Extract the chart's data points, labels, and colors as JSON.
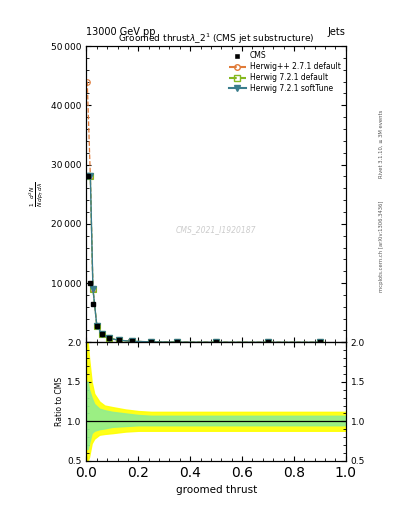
{
  "top_left_label": "13000 GeV pp",
  "top_right_label": "Jets",
  "watermark": "CMS_2021_I1920187",
  "right_label_top": "Rivet 3.1.10, ≥ 3M events",
  "right_label_bot": "mcplots.cern.ch [arXiv:1306.3436]",
  "xlabel": "groomed thrust",
  "ylabel_main": "$\\frac{1}{N}\\frac{d^2N}{dp_T\\,d\\lambda}$",
  "ylabel_ratio": "Ratio to CMS",
  "title": "Groomed thrust $\\lambda\\_2^1$ (CMS jet substructure)",
  "cms_x": [
    0.005,
    0.015,
    0.025,
    0.04,
    0.06,
    0.085,
    0.125,
    0.175,
    0.25,
    0.35,
    0.5,
    0.7,
    0.9
  ],
  "cms_y": [
    28000,
    10000,
    6500,
    2800,
    1400,
    700,
    350,
    180,
    70,
    25,
    8,
    4,
    1.5
  ],
  "herwig_pp_x": [
    0.003,
    0.015,
    0.025,
    0.04,
    0.06,
    0.085,
    0.125,
    0.175,
    0.25,
    0.35,
    0.5,
    0.7,
    0.9
  ],
  "herwig_pp_y": [
    44000,
    28000,
    9000,
    2800,
    1400,
    700,
    350,
    180,
    70,
    25,
    8,
    4,
    1.5
  ],
  "herwig721_x": [
    0.003,
    0.015,
    0.025,
    0.04,
    0.06,
    0.085,
    0.125,
    0.175,
    0.25,
    0.35,
    0.5,
    0.7,
    0.9
  ],
  "herwig721_y": [
    28000,
    28000,
    9000,
    2800,
    1400,
    700,
    350,
    180,
    70,
    25,
    8,
    4,
    1.5
  ],
  "herwig721s_x": [
    0.003,
    0.015,
    0.025,
    0.04,
    0.06,
    0.085,
    0.125,
    0.175,
    0.25,
    0.35,
    0.5,
    0.7,
    0.9
  ],
  "herwig721s_y": [
    28000,
    28000,
    9000,
    2800,
    1400,
    700,
    350,
    180,
    70,
    25,
    8,
    4,
    1.5
  ],
  "color_cms": "#000000",
  "color_herwig_pp": "#e07b39",
  "color_herwig721": "#85b820",
  "color_herwig721s": "#3a7d8c",
  "ylim_main": [
    0,
    50000
  ],
  "yticks_main": [
    0,
    10000,
    20000,
    30000,
    40000,
    50000
  ],
  "ylim_ratio": [
    0.5,
    2.0
  ],
  "yticks_ratio": [
    0.5,
    1.0,
    1.5,
    2.0
  ],
  "xlim": [
    0.0,
    1.0
  ],
  "band_yellow_x": [
    0.0,
    0.005,
    0.01,
    0.02,
    0.03,
    0.05,
    0.07,
    0.1,
    0.15,
    0.2,
    0.25,
    0.3,
    0.5,
    0.7,
    0.9,
    1.0
  ],
  "band_yellow_lo": [
    0.5,
    0.5,
    0.55,
    0.72,
    0.78,
    0.83,
    0.84,
    0.85,
    0.87,
    0.88,
    0.88,
    0.88,
    0.88,
    0.88,
    0.88,
    0.88
  ],
  "band_yellow_hi": [
    2.0,
    2.0,
    1.8,
    1.5,
    1.35,
    1.25,
    1.2,
    1.18,
    1.15,
    1.13,
    1.12,
    1.12,
    1.12,
    1.12,
    1.12,
    1.12
  ],
  "band_green_x": [
    0.0,
    0.005,
    0.01,
    0.02,
    0.03,
    0.05,
    0.07,
    0.1,
    0.15,
    0.2,
    0.25,
    0.3,
    0.5,
    0.7,
    0.9,
    1.0
  ],
  "band_green_lo": [
    0.65,
    0.65,
    0.72,
    0.85,
    0.88,
    0.9,
    0.91,
    0.93,
    0.94,
    0.95,
    0.95,
    0.95,
    0.95,
    0.95,
    0.95,
    0.95
  ],
  "band_green_hi": [
    1.5,
    1.5,
    1.4,
    1.3,
    1.22,
    1.16,
    1.14,
    1.12,
    1.1,
    1.08,
    1.07,
    1.07,
    1.07,
    1.07,
    1.07,
    1.07
  ]
}
